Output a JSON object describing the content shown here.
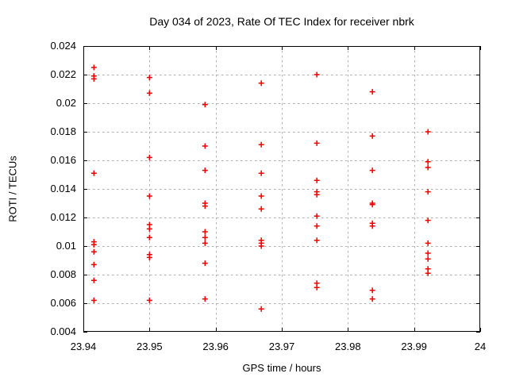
{
  "chart_data": {
    "type": "scatter",
    "title": "Day 034 of 2023, Rate Of TEC Index for receiver nbrk",
    "xlabel": "GPS time / hours",
    "ylabel": "ROTI / TECUs",
    "xlim": [
      23.94,
      24
    ],
    "ylim": [
      0.004,
      0.024
    ],
    "xticks": {
      "values": [
        23.94,
        23.95,
        23.96,
        23.97,
        23.98,
        23.99,
        24
      ],
      "labels": [
        "23.94",
        "23.95",
        "23.96",
        "23.97",
        "23.98",
        "23.99",
        "24"
      ]
    },
    "yticks": {
      "values": [
        0.004,
        0.006,
        0.008,
        0.01,
        0.012,
        0.014,
        0.016,
        0.018,
        0.02,
        0.022,
        0.024
      ],
      "labels": [
        "0.004",
        "0.006",
        "0.008",
        "0.01",
        "0.012",
        "0.014",
        "0.016",
        "0.018",
        "0.02",
        "0.022",
        "0.024"
      ]
    },
    "grid": true,
    "grid_style": "dashed",
    "grid_color": "#b0b0b0",
    "axis_color": "#000000",
    "background": "#ffffff",
    "legend": "none",
    "series": [
      {
        "name": "ROTI",
        "marker": "plus",
        "color": "#ee0000",
        "points": [
          [
            23.9416,
            0.0225
          ],
          [
            23.9416,
            0.0219
          ],
          [
            23.9416,
            0.0217
          ],
          [
            23.9416,
            0.0151
          ],
          [
            23.9416,
            0.0103
          ],
          [
            23.9416,
            0.0101
          ],
          [
            23.9416,
            0.0096
          ],
          [
            23.9416,
            0.0087
          ],
          [
            23.9416,
            0.0076
          ],
          [
            23.9416,
            0.0062
          ],
          [
            23.95,
            0.0218
          ],
          [
            23.95,
            0.0207
          ],
          [
            23.95,
            0.0162
          ],
          [
            23.95,
            0.0135
          ],
          [
            23.95,
            0.0115
          ],
          [
            23.95,
            0.0112
          ],
          [
            23.95,
            0.0106
          ],
          [
            23.95,
            0.0094
          ],
          [
            23.95,
            0.0092
          ],
          [
            23.95,
            0.0062
          ],
          [
            23.9584,
            0.0199
          ],
          [
            23.9584,
            0.017
          ],
          [
            23.9584,
            0.0153
          ],
          [
            23.9584,
            0.013
          ],
          [
            23.9584,
            0.0128
          ],
          [
            23.9584,
            0.011
          ],
          [
            23.9584,
            0.0106
          ],
          [
            23.9584,
            0.0102
          ],
          [
            23.9584,
            0.0088
          ],
          [
            23.9584,
            0.0063
          ],
          [
            23.9669,
            0.0214
          ],
          [
            23.9669,
            0.0171
          ],
          [
            23.9669,
            0.0151
          ],
          [
            23.9669,
            0.0135
          ],
          [
            23.9669,
            0.0126
          ],
          [
            23.9669,
            0.0104
          ],
          [
            23.9669,
            0.0102
          ],
          [
            23.9669,
            0.01
          ],
          [
            23.9669,
            0.0056
          ],
          [
            23.9753,
            0.022
          ],
          [
            23.9753,
            0.0172
          ],
          [
            23.9753,
            0.0146
          ],
          [
            23.9753,
            0.0138
          ],
          [
            23.9753,
            0.0136
          ],
          [
            23.9753,
            0.0121
          ],
          [
            23.9753,
            0.0114
          ],
          [
            23.9753,
            0.0104
          ],
          [
            23.9753,
            0.0074
          ],
          [
            23.9753,
            0.0071
          ],
          [
            23.9837,
            0.0208
          ],
          [
            23.9837,
            0.0177
          ],
          [
            23.9837,
            0.0153
          ],
          [
            23.9837,
            0.013
          ],
          [
            23.9837,
            0.0129
          ],
          [
            23.9837,
            0.0116
          ],
          [
            23.9837,
            0.0114
          ],
          [
            23.9837,
            0.0069
          ],
          [
            23.9837,
            0.0063
          ],
          [
            23.9921,
            0.018
          ],
          [
            23.9921,
            0.0159
          ],
          [
            23.9921,
            0.0155
          ],
          [
            23.9921,
            0.0138
          ],
          [
            23.9921,
            0.0118
          ],
          [
            23.9921,
            0.0102
          ],
          [
            23.9921,
            0.0095
          ],
          [
            23.9921,
            0.0091
          ],
          [
            23.9921,
            0.0084
          ],
          [
            23.9921,
            0.0081
          ]
        ]
      }
    ]
  }
}
